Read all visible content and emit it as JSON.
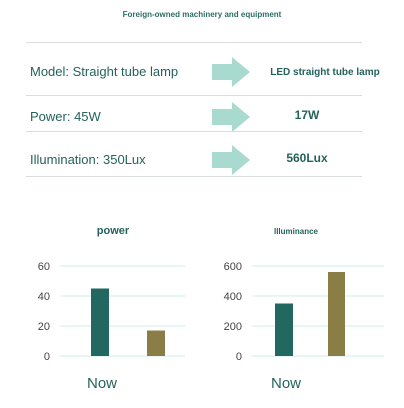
{
  "header": {
    "title": "Foreign-owned machinery and equipment"
  },
  "comparisons": [
    {
      "left": "Model: Straight tube lamp",
      "right": "LED straight tube lamp"
    },
    {
      "left": "Power: 45W",
      "right": "17W"
    },
    {
      "left": "Illumination: 350Lux",
      "right": "560Lux"
    }
  ],
  "colors": {
    "bar_now": "#226760",
    "bar_led": "#8a7d45",
    "arrow": "#a8dad0",
    "grid": "#cdeee8"
  },
  "chart_data": [
    {
      "type": "bar",
      "title": "power",
      "categories": [
        "Now",
        ""
      ],
      "values": [
        45,
        17
      ],
      "ylim": [
        0,
        60
      ],
      "yticks": [
        0,
        20,
        40,
        60
      ],
      "grid": true
    },
    {
      "type": "bar",
      "title": "Illuminance",
      "categories": [
        "Now",
        ""
      ],
      "values": [
        350,
        560
      ],
      "ylim": [
        0,
        600
      ],
      "yticks": [
        0,
        200,
        400,
        600
      ],
      "grid": true
    }
  ]
}
